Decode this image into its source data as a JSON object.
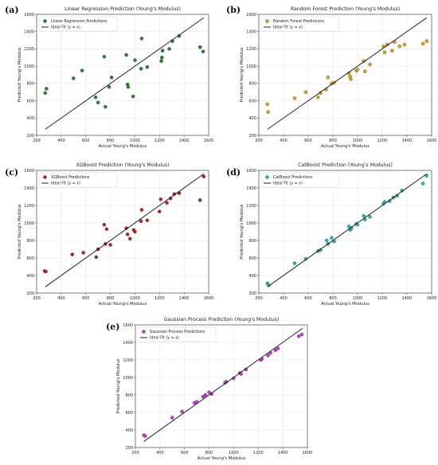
{
  "figure": {
    "background": "#ffffff"
  },
  "chart_data": [
    {
      "type": "scatter",
      "panel_label": "(a)",
      "title": "Linear Regression Prediction (Young's Modulus)",
      "xlabel": "Actual Young's Modulus",
      "ylabel": "Predicted Young's Modulus",
      "xlim": [
        200,
        1600
      ],
      "ylim": [
        200,
        1600
      ],
      "xticks": [
        200,
        400,
        600,
        800,
        1000,
        1200,
        1400,
        1600
      ],
      "yticks": [
        200,
        400,
        600,
        800,
        1000,
        1200,
        1400,
        1600
      ],
      "grid": true,
      "legend_position": "top-left",
      "series": [
        {
          "name": "Linear Regression Predictions",
          "kind": "points",
          "color": "#2e7d32",
          "points": [
            [
              270,
              690
            ],
            [
              280,
              740
            ],
            [
              500,
              860
            ],
            [
              570,
              950
            ],
            [
              680,
              640
            ],
            [
              700,
              580
            ],
            [
              750,
              1110
            ],
            [
              760,
              530
            ],
            [
              790,
              760
            ],
            [
              810,
              870
            ],
            [
              930,
              1130
            ],
            [
              940,
              790
            ],
            [
              945,
              760
            ],
            [
              985,
              650
            ],
            [
              1000,
              1070
            ],
            [
              1050,
              970
            ],
            [
              1055,
              1320
            ],
            [
              1100,
              990
            ],
            [
              1215,
              1060
            ],
            [
              1220,
              1100
            ],
            [
              1225,
              1180
            ],
            [
              1280,
              1200
            ],
            [
              1305,
              1290
            ],
            [
              1360,
              1350
            ],
            [
              1530,
              1220
            ],
            [
              1555,
              1170
            ]
          ]
        },
        {
          "name": "Ideal Fit (y = x)",
          "kind": "line",
          "color": "#222222",
          "points": [
            [
              270,
              270
            ],
            [
              1560,
              1560
            ]
          ]
        }
      ]
    },
    {
      "type": "scatter",
      "panel_label": "(b)",
      "title": "Random Forest Prediction (Young's Modulus)",
      "xlabel": "Actual Young's Modulus",
      "ylabel": "Predicted Young's Modulus",
      "xlim": [
        200,
        1600
      ],
      "ylim": [
        200,
        1600
      ],
      "xticks": [
        200,
        400,
        600,
        800,
        1000,
        1200,
        1400,
        1600
      ],
      "yticks": [
        200,
        400,
        600,
        800,
        1000,
        1200,
        1400,
        1600
      ],
      "grid": true,
      "legend_position": "top-left",
      "series": [
        {
          "name": "Random Forest Predictions",
          "kind": "points",
          "color": "#d9a41c",
          "points": [
            [
              270,
              560
            ],
            [
              275,
              470
            ],
            [
              490,
              630
            ],
            [
              580,
              700
            ],
            [
              680,
              640
            ],
            [
              700,
              690
            ],
            [
              745,
              730
            ],
            [
              760,
              870
            ],
            [
              790,
              800
            ],
            [
              810,
              810
            ],
            [
              930,
              920
            ],
            [
              940,
              880
            ],
            [
              945,
              850
            ],
            [
              990,
              950
            ],
            [
              1000,
              960
            ],
            [
              1050,
              1060
            ],
            [
              1060,
              940
            ],
            [
              1100,
              1020
            ],
            [
              1210,
              1230
            ],
            [
              1220,
              1160
            ],
            [
              1240,
              1250
            ],
            [
              1280,
              1180
            ],
            [
              1300,
              1280
            ],
            [
              1340,
              1230
            ],
            [
              1380,
              1250
            ],
            [
              1530,
              1260
            ],
            [
              1560,
              1290
            ]
          ]
        },
        {
          "name": "Ideal Fit (y = x)",
          "kind": "line",
          "color": "#222222",
          "points": [
            [
              270,
              270
            ],
            [
              1560,
              1560
            ]
          ]
        }
      ]
    },
    {
      "type": "scatter",
      "panel_label": "(c)",
      "title": "XGBoost Prediction (Young's Modulus)",
      "xlabel": "Actual Young's Modulus",
      "ylabel": "Predicted Young's Modulus",
      "xlim": [
        200,
        1600
      ],
      "ylim": [
        200,
        1600
      ],
      "xticks": [
        200,
        400,
        600,
        800,
        1000,
        1200,
        1400,
        1600
      ],
      "yticks": [
        200,
        400,
        600,
        800,
        1000,
        1200,
        1400,
        1600
      ],
      "grid": true,
      "legend_position": "top-left",
      "series": [
        {
          "name": "XGBoost Predictions",
          "kind": "points",
          "color": "#b22222",
          "points": [
            [
              265,
              450
            ],
            [
              275,
              445
            ],
            [
              490,
              640
            ],
            [
              580,
              660
            ],
            [
              685,
              610
            ],
            [
              700,
              700
            ],
            [
              750,
              980
            ],
            [
              760,
              760
            ],
            [
              770,
              930
            ],
            [
              800,
              750
            ],
            [
              930,
              940
            ],
            [
              940,
              870
            ],
            [
              960,
              820
            ],
            [
              990,
              920
            ],
            [
              1000,
              900
            ],
            [
              1050,
              1020
            ],
            [
              1055,
              1150
            ],
            [
              1100,
              1030
            ],
            [
              1200,
              1130
            ],
            [
              1210,
              1270
            ],
            [
              1260,
              1230
            ],
            [
              1290,
              1280
            ],
            [
              1320,
              1330
            ],
            [
              1360,
              1340
            ],
            [
              1530,
              1260
            ],
            [
              1560,
              1530
            ]
          ]
        },
        {
          "name": "Ideal Fit (y = x)",
          "kind": "line",
          "color": "#222222",
          "points": [
            [
              270,
              270
            ],
            [
              1560,
              1560
            ]
          ]
        }
      ]
    },
    {
      "type": "scatter",
      "panel_label": "(d)",
      "title": "CatBoost Prediction (Young's Modulus)",
      "xlabel": "Actual Young's Modulus",
      "ylabel": "Predicted Young's Modulus",
      "xlim": [
        200,
        1600
      ],
      "ylim": [
        200,
        1600
      ],
      "xticks": [
        200,
        400,
        600,
        800,
        1000,
        1200,
        1400,
        1600
      ],
      "yticks": [
        200,
        400,
        600,
        800,
        1000,
        1200,
        1400,
        1600
      ],
      "grid": true,
      "legend_position": "top-left",
      "series": [
        {
          "name": "CatBoost Predictions",
          "kind": "points",
          "color": "#2bb5b0",
          "points": [
            [
              270,
              310
            ],
            [
              280,
              290
            ],
            [
              490,
              540
            ],
            [
              580,
              590
            ],
            [
              680,
              680
            ],
            [
              700,
              690
            ],
            [
              750,
              800
            ],
            [
              760,
              760
            ],
            [
              790,
              830
            ],
            [
              810,
              790
            ],
            [
              930,
              960
            ],
            [
              940,
              920
            ],
            [
              950,
              940
            ],
            [
              990,
              990
            ],
            [
              1000,
              980
            ],
            [
              1050,
              1080
            ],
            [
              1060,
              1040
            ],
            [
              1100,
              1070
            ],
            [
              1210,
              1220
            ],
            [
              1220,
              1240
            ],
            [
              1260,
              1250
            ],
            [
              1290,
              1290
            ],
            [
              1320,
              1310
            ],
            [
              1360,
              1370
            ],
            [
              1530,
              1450
            ],
            [
              1560,
              1540
            ]
          ]
        },
        {
          "name": "Ideal Fit (y = x)",
          "kind": "line",
          "color": "#222222",
          "points": [
            [
              270,
              270
            ],
            [
              1560,
              1560
            ]
          ]
        }
      ]
    },
    {
      "type": "scatter",
      "panel_label": "(e)",
      "title": "Gaussian Process Prediction (Young's Modulus)",
      "xlabel": "Actual Young's Modulus",
      "ylabel": "Predicted Young's Modulus",
      "xlim": [
        200,
        1600
      ],
      "ylim": [
        200,
        1600
      ],
      "xticks": [
        200,
        400,
        600,
        800,
        1000,
        1200,
        1400,
        1600
      ],
      "yticks": [
        200,
        400,
        600,
        800,
        1000,
        1200,
        1400,
        1600
      ],
      "grid": true,
      "legend_position": "top-left",
      "series": [
        {
          "name": "Gaussian Process Predictions",
          "kind": "points",
          "color": "#c03ccf",
          "points": [
            [
              270,
              340
            ],
            [
              280,
              330
            ],
            [
              500,
              540
            ],
            [
              580,
              610
            ],
            [
              680,
              710
            ],
            [
              700,
              720
            ],
            [
              750,
              780
            ],
            [
              770,
              800
            ],
            [
              800,
              830
            ],
            [
              820,
              810
            ],
            [
              930,
              940
            ],
            [
              940,
              950
            ],
            [
              1000,
              990
            ],
            [
              1050,
              1050
            ],
            [
              1060,
              1040
            ],
            [
              1100,
              1090
            ],
            [
              1220,
              1200
            ],
            [
              1230,
              1210
            ],
            [
              1280,
              1250
            ],
            [
              1300,
              1280
            ],
            [
              1340,
              1310
            ],
            [
              1360,
              1330
            ],
            [
              1530,
              1470
            ],
            [
              1555,
              1490
            ]
          ]
        },
        {
          "name": "Ideal Fit (y = x)",
          "kind": "line",
          "color": "#222222",
          "points": [
            [
              270,
              270
            ],
            [
              1560,
              1560
            ]
          ]
        }
      ]
    }
  ]
}
